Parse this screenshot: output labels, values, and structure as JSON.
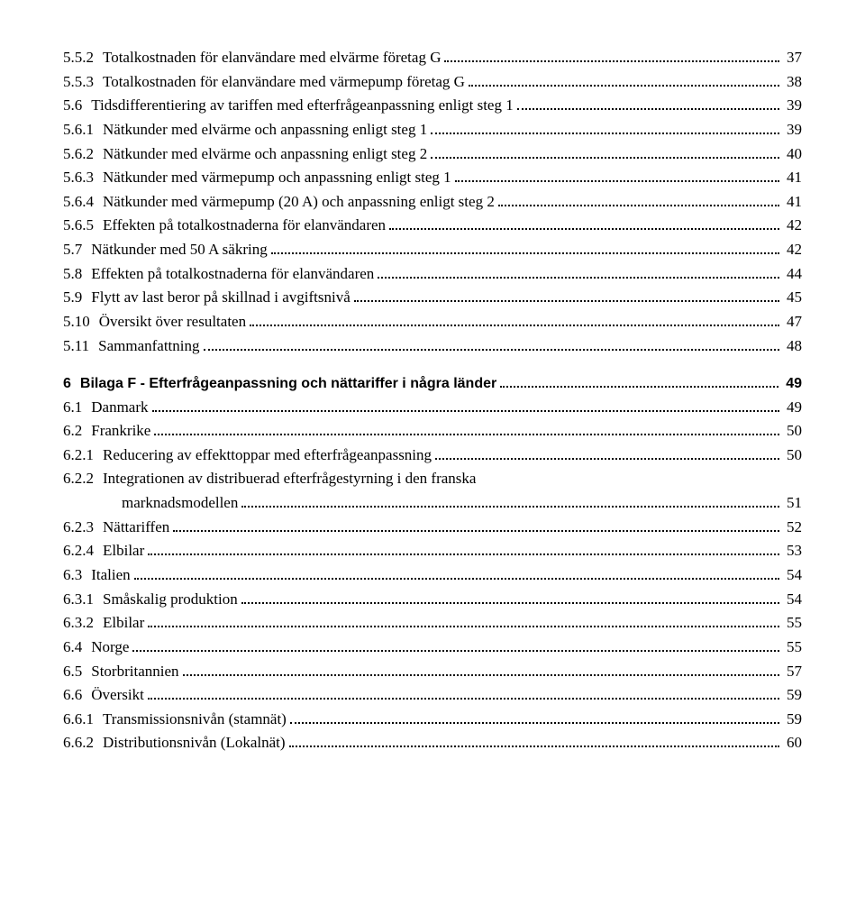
{
  "entries": [
    {
      "num": "5.5.2",
      "text": "Totalkostnaden för elanvändare med elvärme företag G",
      "page": "37",
      "bold": false,
      "indent": false
    },
    {
      "num": "5.5.3",
      "text": "Totalkostnaden för elanvändare med värmepump företag G",
      "page": "38",
      "bold": false,
      "indent": false
    },
    {
      "num": "5.6",
      "text": "Tidsdifferentiering av tariffen med efterfrågeanpassning enligt steg 1",
      "page": "39",
      "bold": false,
      "indent": false
    },
    {
      "num": "5.6.1",
      "text": "Nätkunder med elvärme och anpassning enligt steg 1",
      "page": "39",
      "bold": false,
      "indent": false
    },
    {
      "num": "5.6.2",
      "text": "Nätkunder med elvärme och anpassning enligt steg 2",
      "page": "40",
      "bold": false,
      "indent": false
    },
    {
      "num": "5.6.3",
      "text": "Nätkunder med värmepump och anpassning enligt steg 1",
      "page": "41",
      "bold": false,
      "indent": false
    },
    {
      "num": "5.6.4",
      "text": "Nätkunder med värmepump (20 A) och anpassning enligt steg 2",
      "page": "41",
      "bold": false,
      "indent": false
    },
    {
      "num": "5.6.5",
      "text": "Effekten på totalkostnaderna för elanvändaren",
      "page": "42",
      "bold": false,
      "indent": false
    },
    {
      "num": "5.7",
      "text": "Nätkunder med 50 A säkring",
      "page": "42",
      "bold": false,
      "indent": false
    },
    {
      "num": "5.8",
      "text": "Effekten på totalkostnaderna för elanvändaren",
      "page": "44",
      "bold": false,
      "indent": false
    },
    {
      "num": "5.9",
      "text": "Flytt av last beror på skillnad i avgiftsnivå",
      "page": "45",
      "bold": false,
      "indent": false
    },
    {
      "num": "5.10",
      "text": "Översikt över resultaten",
      "page": "47",
      "bold": false,
      "indent": false
    },
    {
      "num": "5.11",
      "text": "Sammanfattning",
      "page": "48",
      "bold": false,
      "indent": false
    },
    {
      "gap": true
    },
    {
      "num": "6",
      "text": "Bilaga F - Efterfrågeanpassning och nättariffer i några länder",
      "page": " 49",
      "bold": true,
      "indent": false
    },
    {
      "num": "6.1",
      "text": "Danmark",
      "page": "49",
      "bold": false,
      "indent": false
    },
    {
      "num": "6.2",
      "text": "Frankrike",
      "page": "50",
      "bold": false,
      "indent": false
    },
    {
      "num": "6.2.1",
      "text": "Reducering av effekttoppar med efterfrågeanpassning",
      "page": "50",
      "bold": false,
      "indent": false
    },
    {
      "num": "6.2.2",
      "text": "Integrationen av distribuerad efterfrågestyrning i den franska",
      "page": "",
      "bold": false,
      "indent": false,
      "nodots": true
    },
    {
      "num": "",
      "text": "marknadsmodellen",
      "page": "51",
      "bold": false,
      "indent": true
    },
    {
      "num": "6.2.3",
      "text": "Nättariffen",
      "page": "52",
      "bold": false,
      "indent": false
    },
    {
      "num": "6.2.4",
      "text": "Elbilar",
      "page": "53",
      "bold": false,
      "indent": false
    },
    {
      "num": "6.3",
      "text": "Italien",
      "page": "54",
      "bold": false,
      "indent": false
    },
    {
      "num": "6.3.1",
      "text": "Småskalig produktion",
      "page": "54",
      "bold": false,
      "indent": false
    },
    {
      "num": "6.3.2",
      "text": "Elbilar",
      "page": "55",
      "bold": false,
      "indent": false
    },
    {
      "num": "6.4",
      "text": "Norge",
      "page": "55",
      "bold": false,
      "indent": false
    },
    {
      "num": "6.5",
      "text": "Storbritannien",
      "page": "57",
      "bold": false,
      "indent": false
    },
    {
      "num": "6.6",
      "text": "Översikt",
      "page": "59",
      "bold": false,
      "indent": false
    },
    {
      "num": "6.6.1",
      "text": "Transmissionsnivån (stamnät)",
      "page": "59",
      "bold": false,
      "indent": false
    },
    {
      "num": "6.6.2",
      "text": "Distributionsnivån (Lokalnät)",
      "page": "60",
      "bold": false,
      "indent": false
    }
  ]
}
